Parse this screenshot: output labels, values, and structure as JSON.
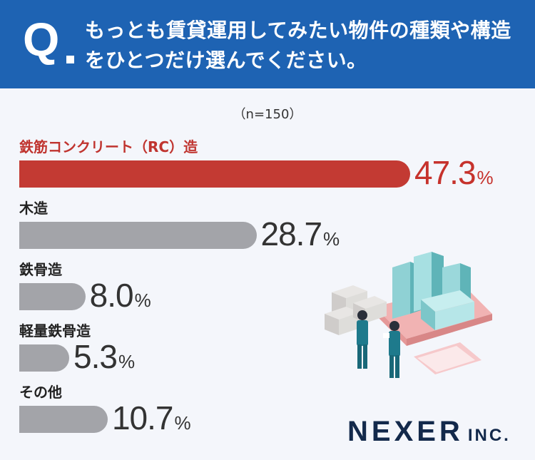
{
  "header": {
    "q_mark": "Q",
    "question": "もっとも賃貸運用してみたい物件の種類や構造をひとつだけ選んでください。"
  },
  "sample_note": "（n=150）",
  "brand": {
    "name": "NEXER",
    "suffix": "INC."
  },
  "colors": {
    "header": "#1e63b3",
    "highlight": "#c33a33",
    "bar": "#a3a4a9"
  },
  "chart_data": {
    "type": "bar",
    "orientation": "horizontal",
    "categories": [
      "鉄筋コンクリート（RC）造",
      "木造",
      "鉄骨造",
      "軽量鉄骨造",
      "その他"
    ],
    "values": [
      47.3,
      28.7,
      8.0,
      5.3,
      10.7
    ],
    "value_labels": [
      "47.3",
      "28.7",
      "8.0",
      "5.3",
      "10.7"
    ],
    "unit": "%",
    "highlight_index": 0
  }
}
